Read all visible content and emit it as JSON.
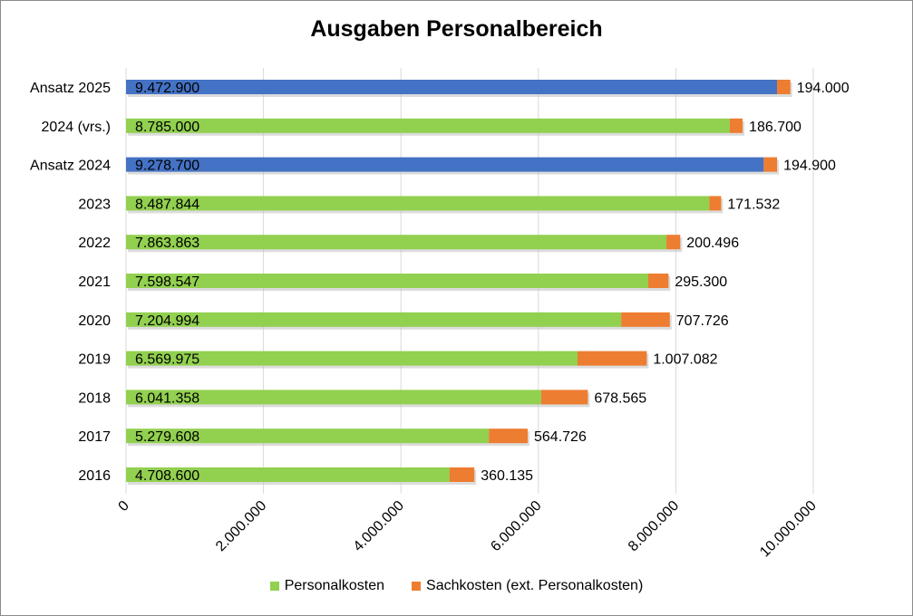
{
  "chart_data": {
    "type": "bar",
    "orientation": "horizontal",
    "stacked": true,
    "title": "Ausgaben Personalbereich",
    "categories": [
      "Ansatz 2025",
      "2024 (vrs.)",
      "Ansatz 2024",
      "2023",
      "2022",
      "2021",
      "2020",
      "2019",
      "2018",
      "2017",
      "2016"
    ],
    "series": [
      {
        "name": "Personalkosten",
        "color": "#92d050",
        "values": [
          9472900,
          8785000,
          9278700,
          8487844,
          7863863,
          7598547,
          7204994,
          6569975,
          6041358,
          5279608,
          4708600
        ],
        "labels": [
          "9.472.900",
          "8.785.000",
          "9.278.700",
          "8.487.844",
          "7.863.863",
          "7.598.547",
          "7.204.994",
          "6.569.975",
          "6.041.358",
          "5.279.608",
          "4.708.600"
        ],
        "point_colors": [
          "#4472c4",
          "#92d050",
          "#4472c4",
          "#92d050",
          "#92d050",
          "#92d050",
          "#92d050",
          "#92d050",
          "#92d050",
          "#92d050",
          "#92d050"
        ]
      },
      {
        "name": "Sachkosten (ext. Personalkosten)",
        "color": "#ed7d31",
        "values": [
          194000,
          186700,
          194900,
          171532,
          200496,
          295300,
          707726,
          1007082,
          678565,
          564726,
          360135
        ],
        "labels": [
          "194.000",
          "186.700",
          "194.900",
          "171.532",
          "200.496",
          "295.300",
          "707.726",
          "1.007.082",
          "678.565",
          "564.726",
          "360.135"
        ]
      }
    ],
    "xlim": [
      0,
      10000000
    ],
    "x_ticks": [
      0,
      2000000,
      4000000,
      6000000,
      8000000,
      10000000
    ],
    "x_tick_labels": [
      "0",
      "2.000.000",
      "4.000.000",
      "6.000.000",
      "8.000.000",
      "10.000.000"
    ],
    "grid": true,
    "legend": "bottom"
  }
}
